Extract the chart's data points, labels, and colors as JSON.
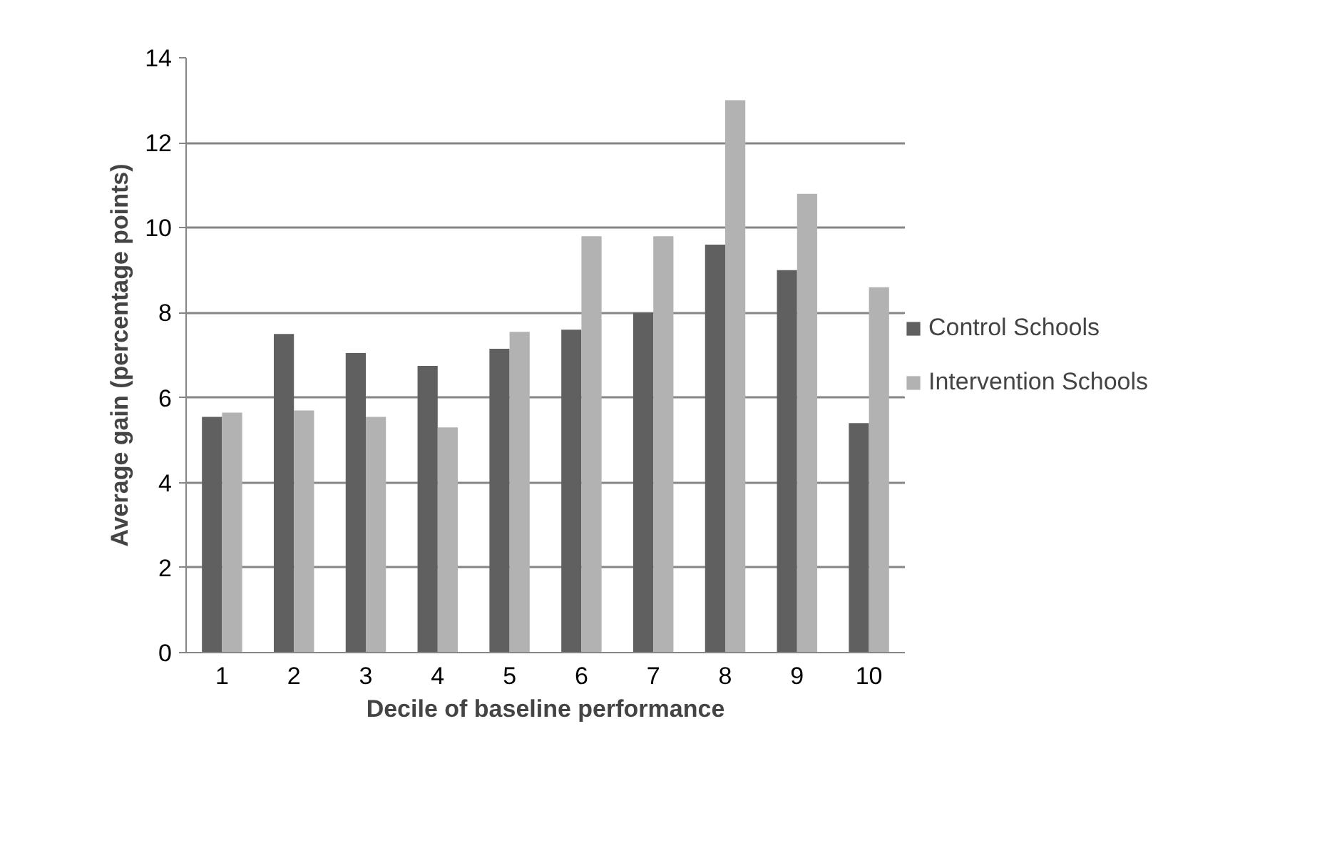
{
  "chart_data": {
    "type": "bar",
    "xlabel": "Decile of baseline performance",
    "ylabel": "Average gain (percentage points)",
    "categories": [
      "1",
      "2",
      "3",
      "4",
      "5",
      "6",
      "7",
      "8",
      "9",
      "10"
    ],
    "series": [
      {
        "name": "Control Schools",
        "color": "#606060",
        "values": [
          5.55,
          7.5,
          7.05,
          6.75,
          7.15,
          7.6,
          8.0,
          9.6,
          9.0,
          5.4
        ]
      },
      {
        "name": "Intervention Schools",
        "color": "#b2b2b2",
        "values": [
          5.65,
          5.7,
          5.55,
          5.3,
          7.55,
          9.8,
          9.8,
          13.0,
          10.8,
          8.6
        ]
      }
    ],
    "ylim": [
      0,
      14
    ],
    "yticks": [
      0,
      2,
      4,
      6,
      8,
      10,
      12,
      14
    ],
    "grid": "y",
    "legend": "right"
  }
}
